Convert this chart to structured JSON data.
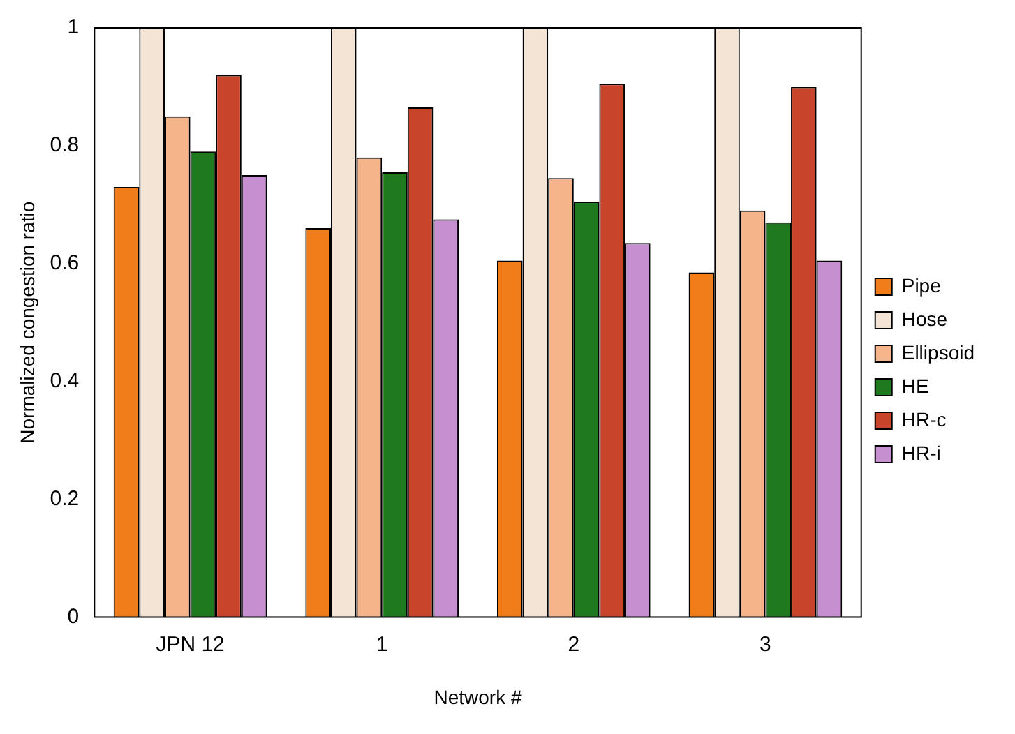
{
  "chart_data": {
    "type": "bar",
    "xlabel": "Network #",
    "ylabel": "Normalized congestion ratio",
    "categories": [
      "JPN 12",
      "1",
      "2",
      "3"
    ],
    "series": [
      {
        "name": "Pipe",
        "color": "#f07d1a",
        "values": [
          0.73,
          0.66,
          0.605,
          0.585
        ]
      },
      {
        "name": "Hose",
        "color": "#f3e4d6",
        "values": [
          1,
          1,
          1,
          1
        ]
      },
      {
        "name": "Ellipsoid",
        "color": "#f6b48a",
        "values": [
          0.85,
          0.78,
          0.745,
          0.69
        ]
      },
      {
        "name": "HE",
        "color": "#1f7a1f",
        "values": [
          0.79,
          0.755,
          0.705,
          0.67
        ]
      },
      {
        "name": "HR-c",
        "color": "#c8452c",
        "values": [
          0.92,
          0.865,
          0.905,
          0.9
        ]
      },
      {
        "name": "HR-i",
        "color": "#c58fd0",
        "values": [
          0.75,
          0.675,
          0.635,
          0.605
        ]
      }
    ],
    "ylim": [
      0,
      1
    ],
    "yticks": [
      0,
      0.2,
      0.4,
      0.6,
      0.8,
      1
    ],
    "grid": false,
    "legend": "right"
  }
}
